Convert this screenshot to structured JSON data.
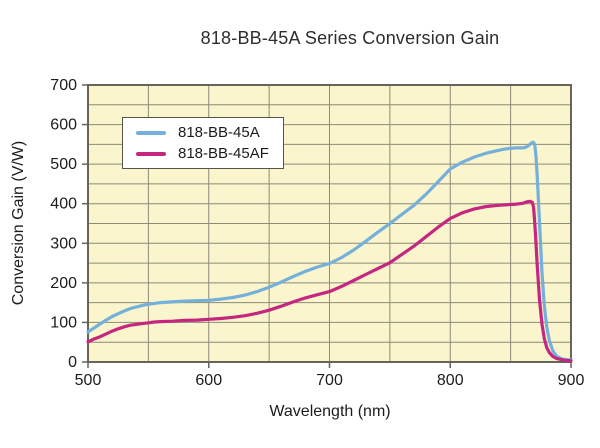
{
  "chart_data": {
    "type": "line",
    "title": "818-BB-45A Series Conversion Gain",
    "xlabel": "Wavelength (nm)",
    "ylabel": "Conversion Gain (V/W)",
    "xlim": [
      500,
      900
    ],
    "ylim": [
      0,
      700
    ],
    "x_major_ticks": [
      500,
      600,
      700,
      800,
      900
    ],
    "y_major_ticks": [
      0,
      100,
      200,
      300,
      400,
      500,
      600,
      700
    ],
    "grid": true,
    "grid_step_x": 50,
    "grid_step_y": 50,
    "legend_position": "upper-left-inside",
    "colors": {
      "plot_background": "#faf5cd",
      "grid": "#8b8b78",
      "frame": "#66655a",
      "text": "#1c1c1c"
    },
    "x": [
      500,
      505,
      510,
      515,
      520,
      525,
      530,
      535,
      540,
      545,
      550,
      555,
      560,
      570,
      580,
      590,
      600,
      610,
      620,
      630,
      640,
      650,
      660,
      670,
      680,
      690,
      700,
      710,
      720,
      730,
      740,
      750,
      760,
      770,
      780,
      790,
      800,
      810,
      820,
      830,
      840,
      845,
      850,
      855,
      860,
      862,
      864,
      866,
      868,
      869,
      870,
      871,
      872,
      874,
      876,
      878,
      880,
      882,
      885,
      888,
      892,
      896,
      900
    ],
    "series": [
      {
        "name": "818-BB-45A",
        "color": "#74b0da",
        "values": [
          76,
          86,
          96,
          106,
          115,
          122,
          129,
          135,
          139,
          143,
          146,
          148,
          150,
          152,
          154,
          155,
          156,
          159,
          163,
          169,
          178,
          189,
          202,
          216,
          229,
          240,
          249,
          264,
          283,
          305,
          328,
          350,
          373,
          396,
          424,
          456,
          488,
          505,
          518,
          528,
          535,
          538,
          540,
          541,
          541,
          542,
          545,
          550,
          555,
          555,
          548,
          520,
          470,
          350,
          225,
          140,
          88,
          55,
          28,
          15,
          8,
          6,
          5
        ]
      },
      {
        "name": "818-BB-45AF",
        "color": "#c5267f",
        "values": [
          51,
          58,
          64,
          71,
          78,
          84,
          89,
          93,
          95,
          97,
          99,
          101,
          102,
          103,
          105,
          106,
          108,
          110,
          113,
          117,
          123,
          131,
          141,
          152,
          162,
          170,
          178,
          191,
          206,
          221,
          236,
          251,
          272,
          293,
          317,
          341,
          363,
          377,
          387,
          393,
          396,
          397,
          398,
          399,
          401,
          403,
          405,
          406,
          403,
          390,
          350,
          300,
          245,
          155,
          95,
          58,
          36,
          24,
          14,
          9,
          6,
          4,
          3
        ]
      }
    ]
  }
}
